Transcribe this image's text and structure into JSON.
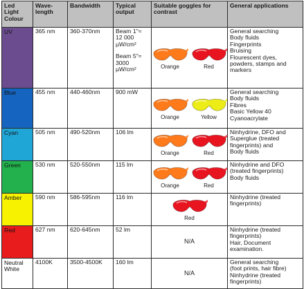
{
  "headers": {
    "colour": "Led Light Colour",
    "wavelength": "Wave-length",
    "bandwidth": "Bandwidth",
    "output": "Typical output",
    "goggles": "Suitable goggles for contrast",
    "applications": "General applications"
  },
  "rows": [
    {
      "colour": "UV",
      "swatch": "#6b4c8f",
      "wavelength": "365 nm",
      "bandwidth": "360-370nm",
      "output": [
        "Beam 1\"≈",
        "12 000",
        "µW/cm²",
        "",
        "Beam 5\"≈",
        "3000",
        "µW/cm²"
      ],
      "goggles": [
        {
          "label": "Orange",
          "color": "#ff7a1a"
        },
        {
          "label": "Red",
          "color": "#e8141f"
        }
      ],
      "applications": [
        "General searching",
        "Body fluids",
        "Fingerprints",
        "Bruising",
        "Flourescent dyes,",
        "powders, stamps and",
        "markers"
      ]
    },
    {
      "colour": "Blue",
      "swatch": "#1565c0",
      "wavelength": "455 nm",
      "bandwidth": "440-460nm",
      "output": [
        "900 mW"
      ],
      "goggles": [
        {
          "label": "Orange",
          "color": "#ff7a1a"
        },
        {
          "label": "Yellow",
          "color": "#ecec17"
        }
      ],
      "applications": [
        "General searching",
        "Body fluids",
        "Fibres",
        "Basic Yellow 40",
        "Cyanoacrylate"
      ]
    },
    {
      "colour": "Cyan",
      "swatch": "#1fa6d6",
      "wavelength": "505 nm",
      "bandwidth": "490-520nm",
      "output": [
        "106 lm"
      ],
      "goggles": [
        {
          "label": "Orange",
          "color": "#ff7a1a"
        },
        {
          "label": "Red",
          "color": "#e8141f"
        }
      ],
      "applications": [
        "Ninhydrine, DFO and",
        "Superglue (treated",
        "fingerprints) and",
        "Body fluids"
      ]
    },
    {
      "colour": "Green",
      "swatch": "#22b14c",
      "wavelength": "530 nm",
      "bandwidth": "520-550nm",
      "output": [
        "115 lm"
      ],
      "goggles": [
        {
          "label": "Orange",
          "color": "#ff7a1a"
        },
        {
          "label": "Red",
          "color": "#e8141f"
        }
      ],
      "applications": [
        "Ninhydrine and DFO",
        "(treated fingerprints)",
        "Body fluids"
      ]
    },
    {
      "colour": "Amber",
      "swatch": "#f7f200",
      "wavelength": "590 nm",
      "bandwidth": "586-595nm",
      "output": [
        "116 lm"
      ],
      "goggles": [
        {
          "label": "Red",
          "color": "#e8141f"
        }
      ],
      "applications": [
        "Ninhydrine (treated",
        "fingerprints)"
      ]
    },
    {
      "colour": "Red",
      "swatch": "#e81c1c",
      "wavelength": "627 nm",
      "bandwidth": "620-645nm",
      "output": [
        "52 lm"
      ],
      "goggles_text": "N/A",
      "applications": [
        "Ninhydrine (treated",
        "fingerprints)",
        "Hair, Document",
        "examination."
      ]
    },
    {
      "colour": "Neutral White",
      "swatch": "#ffffff",
      "wavelength": "4100K",
      "bandwidth": "3500-4500K",
      "output": [
        "160 lm"
      ],
      "goggles_text": "N/A",
      "applications": [
        "General searching",
        "(foot prints, hair fibre)",
        "Ninhydrine (treated",
        "fingerprints)"
      ]
    }
  ]
}
